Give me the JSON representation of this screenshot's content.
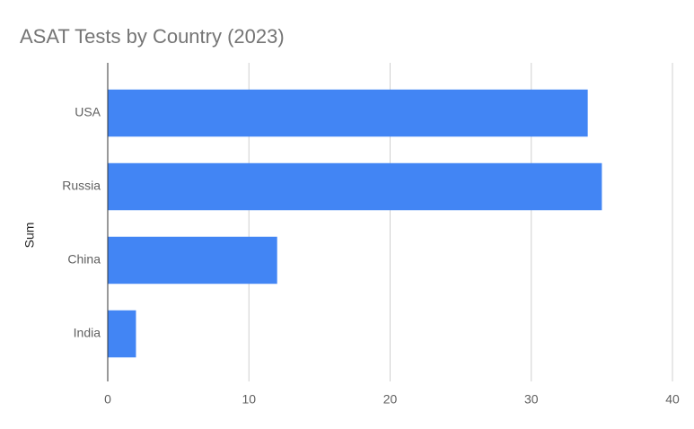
{
  "chart_data": {
    "type": "bar",
    "orientation": "horizontal",
    "title": "ASAT Tests by Country (2023)",
    "y_label": "Sum",
    "categories": [
      "USA",
      "Russia",
      "China",
      "India"
    ],
    "values": [
      34,
      35,
      12,
      2
    ],
    "color": "#4285f4",
    "xlim": [
      0,
      40
    ],
    "xticks": [
      0,
      10,
      20,
      30,
      40
    ],
    "grid": true
  }
}
